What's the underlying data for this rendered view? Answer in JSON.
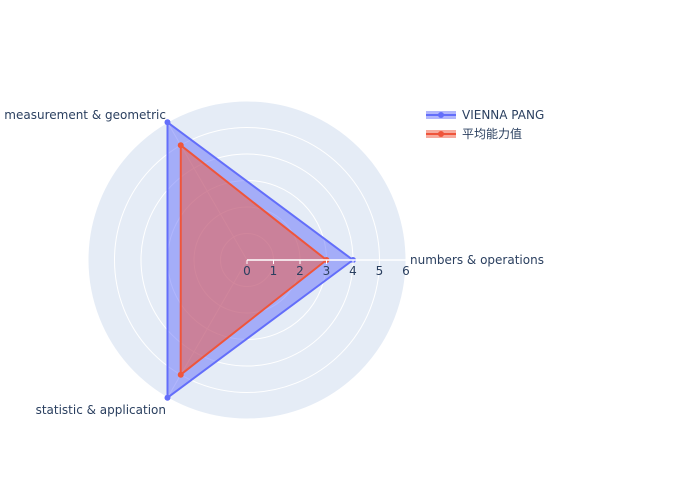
{
  "chart_data": {
    "type": "radar",
    "title": "",
    "axes": [
      "numbers & operations",
      "measurement & geometric",
      "statistic & application"
    ],
    "radial_range": [
      0,
      6
    ],
    "radial_ticks": [
      "0",
      "1",
      "2",
      "3",
      "4",
      "5",
      "6"
    ],
    "grid": true,
    "legend_position": "top-right",
    "series": [
      {
        "name": "VIENNA PANG",
        "values": [
          4,
          6,
          6
        ],
        "color": "#636efa"
      },
      {
        "name": "平均能力值",
        "values": [
          3,
          5,
          5
        ],
        "color": "#ef553b"
      }
    ],
    "colors": {
      "background": "#e5ecf6",
      "grid": "#ffffff",
      "text": "#2a3f5f"
    }
  }
}
